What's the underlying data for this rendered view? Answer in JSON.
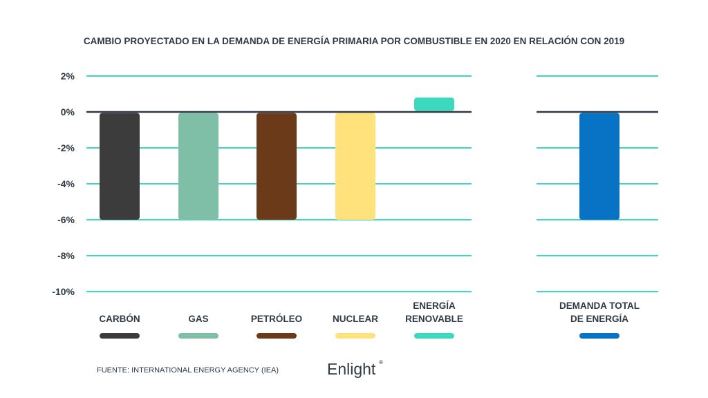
{
  "chart_data": {
    "type": "bar",
    "title": "CAMBIO PROYECTADO EN LA DEMANDA DE ENERGÍA PRIMARIA POR COMBUSTIBLE EN 2020 EN RELACIÓN CON 2019",
    "xlabel": "",
    "ylabel": "",
    "ylim": [
      -10,
      2
    ],
    "y_ticks": [
      2,
      0,
      -2,
      -4,
      -6,
      -8,
      -10
    ],
    "y_tick_labels": [
      "2%",
      "0%",
      "-2%",
      "-4%",
      "-6%",
      "-8%",
      "-10%"
    ],
    "grid": true,
    "legend_placement": "bottom",
    "groups": [
      {
        "categories": [
          {
            "label": [
              "CARBÓN"
            ],
            "value": -6,
            "color": "#3c3c3c"
          },
          {
            "label": [
              "GAS"
            ],
            "value": -6,
            "color": "#7fbfa8"
          },
          {
            "label": [
              "PETRÓLEO"
            ],
            "value": -6,
            "color": "#6b3a19"
          },
          {
            "label": [
              "NUCLEAR"
            ],
            "value": -6,
            "color": "#ffe27c"
          },
          {
            "label": [
              "ENERGÍA",
              "RENOVABLE"
            ],
            "value": 0.8,
            "color": "#3dd9bf"
          }
        ]
      },
      {
        "categories": [
          {
            "label": [
              "DEMANDA TOTAL",
              "DE ENERGÍA"
            ],
            "value": -6,
            "color": "#0872c4"
          }
        ]
      }
    ],
    "colors": {
      "grid": "#3dd9bf",
      "zero_line": "#2f3a44",
      "text": "#2f3a44"
    }
  },
  "footer": {
    "source": "FUENTE: INTERNATIONAL ENERGY AGENCY (IEA)",
    "logo": "Enlight",
    "logo_mark": "®"
  }
}
